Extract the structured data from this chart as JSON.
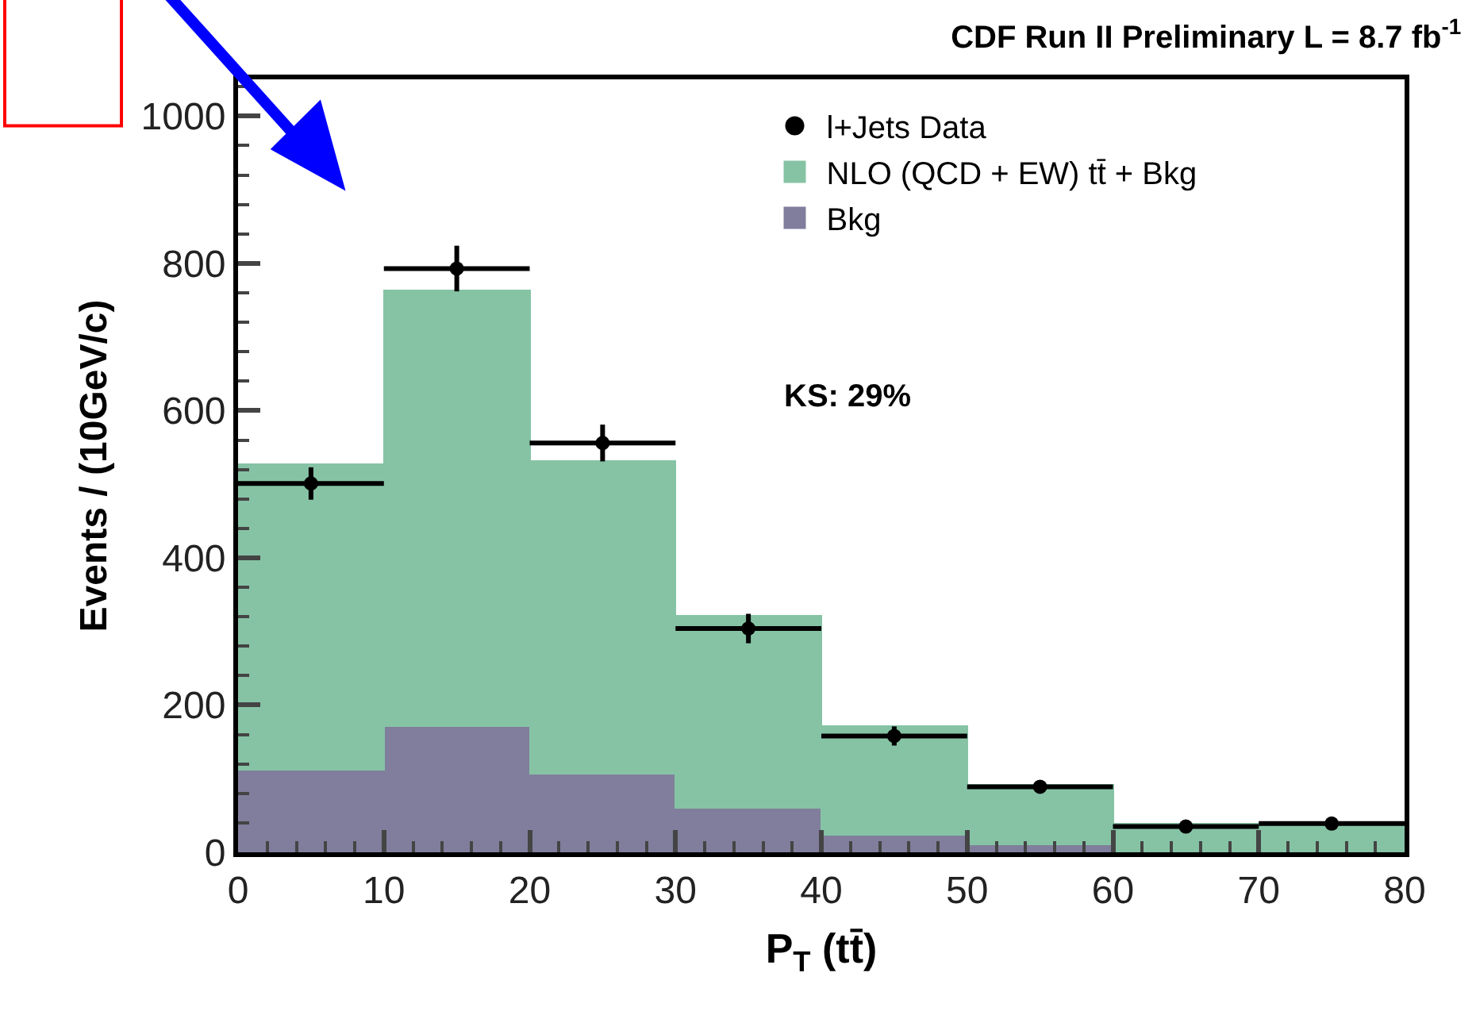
{
  "chart_data": {
    "type": "bar",
    "title": "CDF Run II Preliminary L = 8.7 fb$^{-1}$",
    "xlabel": "P$_{T}$ (tt̄)",
    "ylabel": "Events / (10GeV/c)",
    "x": [
      5,
      15,
      25,
      35,
      45,
      55,
      65,
      75
    ],
    "stacked": true,
    "series": [
      {
        "name": "Bkg",
        "color": "#807e9c",
        "values": [
          112,
          171,
          107,
          60,
          24,
          11,
          null,
          null
        ]
      },
      {
        "name": "NLO (QCD + EW) tt̄ + Bkg",
        "color": "#86c3a5",
        "values": [
          415,
          592,
          424,
          261,
          147,
          81,
          39,
          38
        ]
      },
      {
        "name": "l+Jets Data",
        "type": "scatter",
        "color": "#000000",
        "marker": "circle",
        "x": [
          5,
          15,
          25,
          35,
          45,
          55,
          65,
          75
        ],
        "values": [
          501,
          793,
          556,
          304,
          158,
          89,
          35,
          39
        ],
        "errors": [
          22,
          31,
          25,
          20,
          13,
          9,
          6,
          6
        ],
        "xerrors": [
          5,
          5,
          5,
          5,
          5,
          5,
          5,
          5
        ]
      }
    ],
    "annotations": [
      "KS: 29%"
    ],
    "xlim": [
      0,
      80
    ],
    "ylim": [
      0,
      1050
    ],
    "xticks": [
      0,
      10,
      20,
      30,
      40,
      50,
      60,
      70,
      80
    ],
    "yticks": [
      0,
      200,
      400,
      600,
      800,
      1000
    ],
    "legend": "top right"
  }
}
